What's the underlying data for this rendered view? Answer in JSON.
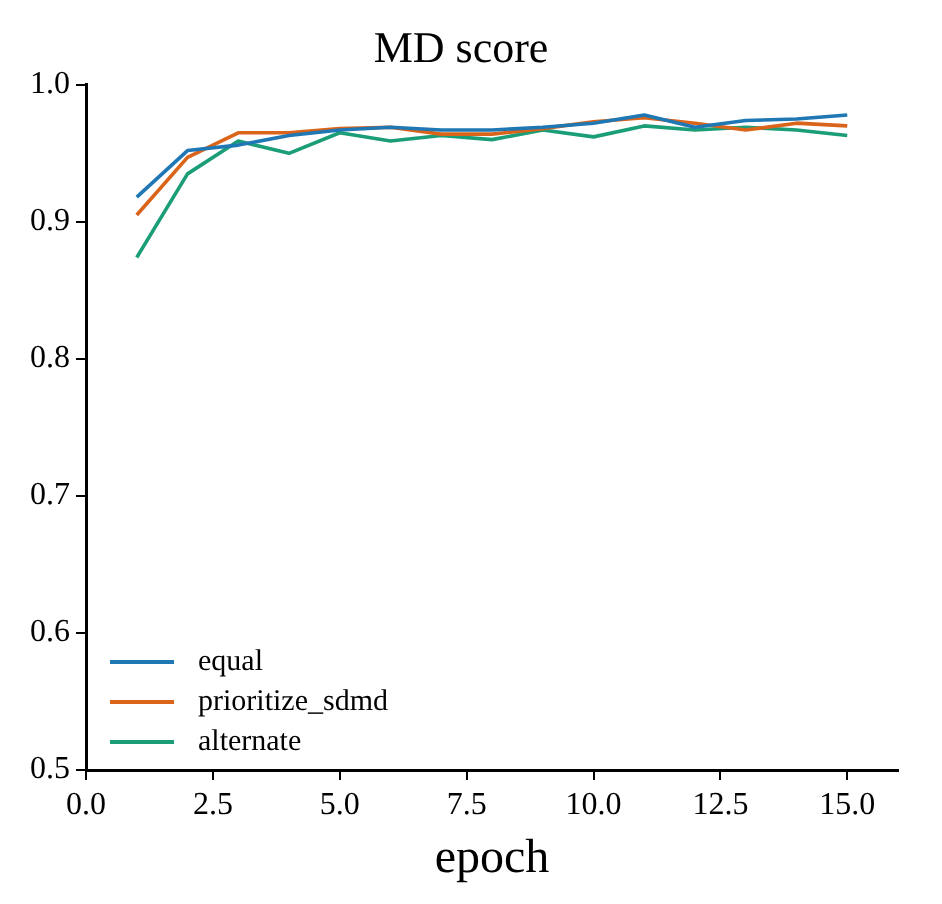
{
  "chart_data": {
    "type": "line",
    "title": "MD score",
    "xlabel": "epoch",
    "x": [
      1,
      2,
      3,
      4,
      5,
      6,
      7,
      8,
      9,
      10,
      11,
      12,
      13,
      14,
      15
    ],
    "series": [
      {
        "name": "equal",
        "color": "#1f77b4",
        "values": [
          0.918,
          0.952,
          0.956,
          0.963,
          0.967,
          0.969,
          0.967,
          0.967,
          0.969,
          0.972,
          0.978,
          0.969,
          0.974,
          0.975,
          0.978
        ]
      },
      {
        "name": "prioritize_sdmd",
        "color": "#d9641a",
        "values": [
          0.905,
          0.947,
          0.965,
          0.965,
          0.968,
          0.969,
          0.964,
          0.964,
          0.968,
          0.973,
          0.976,
          0.972,
          0.967,
          0.972,
          0.97
        ]
      },
      {
        "name": "alternate",
        "color": "#1b9e77",
        "values": [
          0.874,
          0.935,
          0.959,
          0.95,
          0.965,
          0.959,
          0.963,
          0.96,
          0.967,
          0.962,
          0.97,
          0.967,
          0.969,
          0.967,
          0.963
        ]
      }
    ],
    "xlim": [
      0,
      16
    ],
    "xticks": [
      {
        "value": 0,
        "label": "0.0"
      },
      2.5,
      {
        "value": 5,
        "label": "5.0"
      },
      7.5,
      {
        "value": 10,
        "label": "10.0"
      },
      12.5,
      {
        "value": 15,
        "label": "15.0"
      }
    ],
    "ylim": [
      0.5,
      1.0
    ],
    "yticks": [
      0.5,
      0.6,
      0.7,
      0.8,
      0.9,
      {
        "value": 1,
        "label": "1.0"
      }
    ],
    "grid": false,
    "legend": "bottom left",
    "marker": "none",
    "line_style": "solid"
  }
}
